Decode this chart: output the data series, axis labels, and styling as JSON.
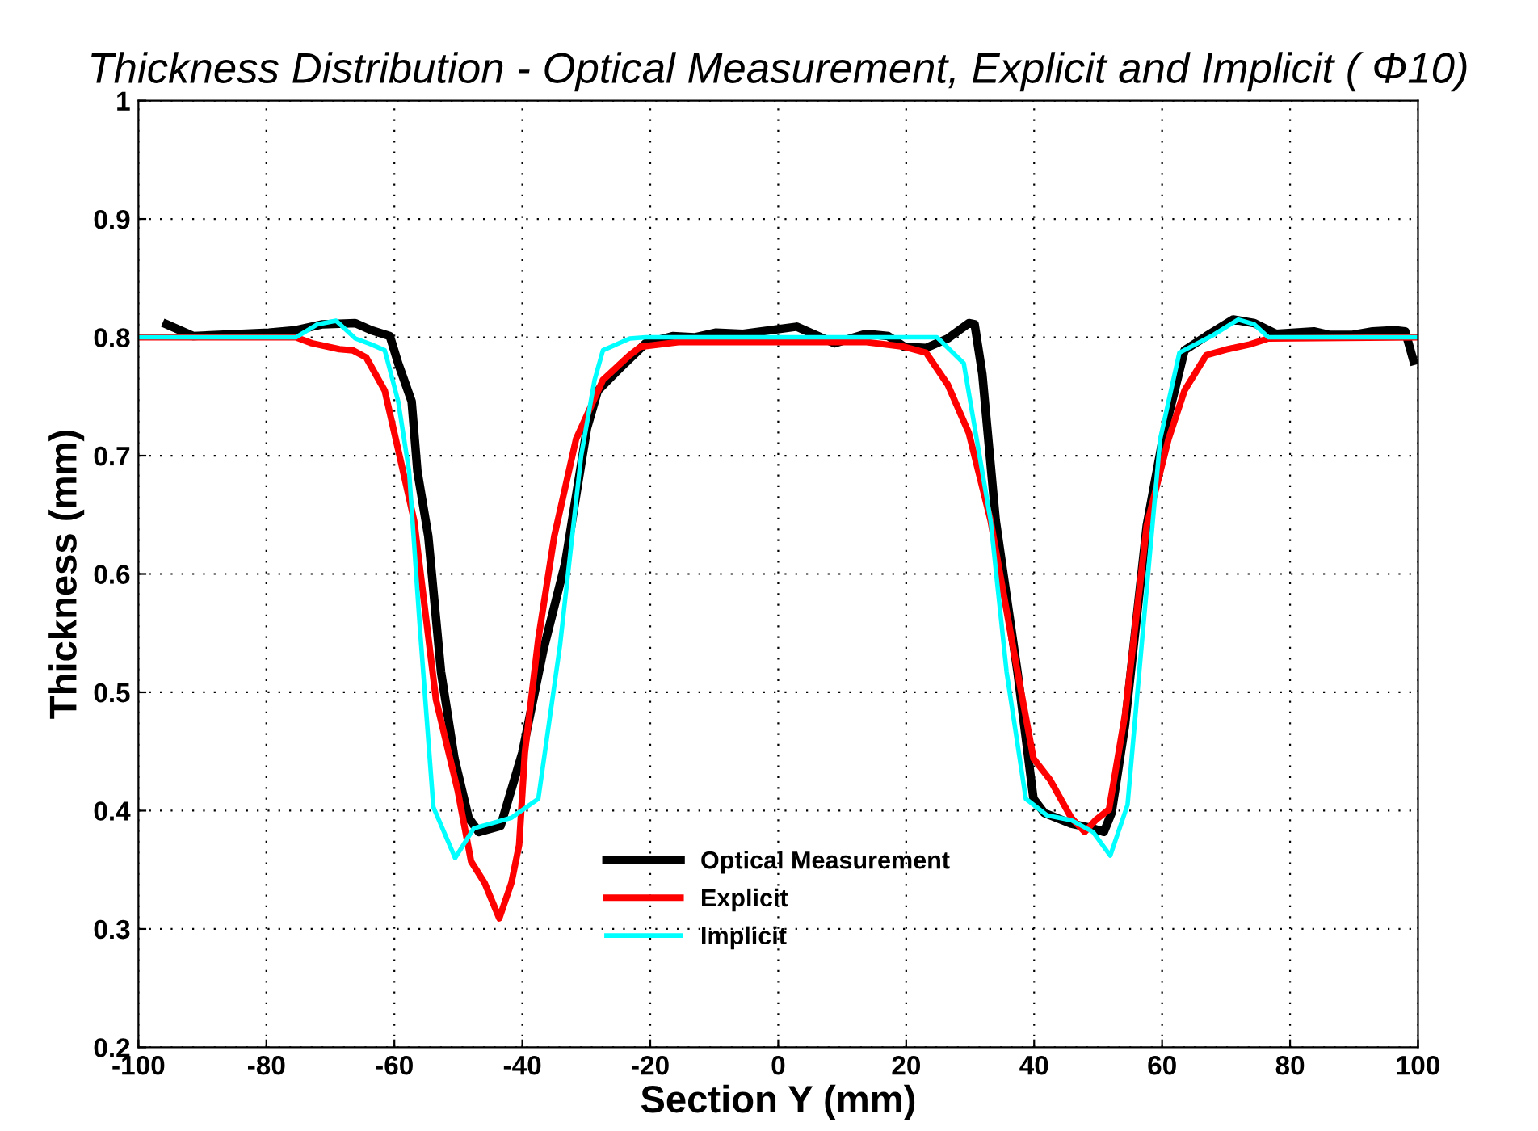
{
  "chart_data": {
    "type": "line",
    "title": "Thickness Distribution - Optical Measurement, Explicit and Implicit ( Φ10)",
    "xlabel": "Section Y (mm)",
    "ylabel": "Thickness (mm)",
    "xlim": [
      -100,
      100
    ],
    "xticks": [
      -100,
      -80,
      -60,
      -40,
      -20,
      0,
      20,
      40,
      60,
      80,
      100
    ],
    "ylim": [
      0.2,
      1
    ],
    "yticks": [
      0.2,
      0.3,
      0.4,
      0.5,
      0.6,
      0.7,
      0.8,
      0.9,
      1
    ],
    "grid": true,
    "legend": "bottom",
    "marker": "none",
    "line_style": "solid",
    "series": [
      {
        "name": "Optical Measurement",
        "color": "#000000",
        "x": [
          -95.6,
          -91.4,
          -79.6,
          -75.4,
          -71.2,
          -66.1,
          -63.6,
          -60.7,
          -59.4,
          -57.3,
          -56.4,
          -54.7,
          -52.7,
          -50.6,
          -48.4,
          -46.8,
          -43.4,
          -40,
          -36.7,
          -33.3,
          -29.9,
          -28.2,
          -24.9,
          -20.7,
          -16.5,
          -13.1,
          -9.7,
          -5.5,
          2.9,
          5.4,
          8.8,
          13.8,
          17.2,
          19.7,
          23.1,
          26.5,
          29.8,
          30.7,
          31.9,
          34.0,
          37.4,
          39.9,
          41.6,
          45.8,
          49.2,
          50.9,
          52.1,
          54.2,
          57.6,
          60.1,
          63.5,
          66.9,
          71.1,
          74.4,
          77.8,
          83.7,
          86.2,
          89.6,
          92.9,
          96.3,
          98,
          99.3
        ],
        "values": [
          0.811,
          0.801,
          0.804,
          0.806,
          0.811,
          0.812,
          0.806,
          0.801,
          0.778,
          0.746,
          0.687,
          0.632,
          0.517,
          0.444,
          0.394,
          0.382,
          0.387,
          0.449,
          0.536,
          0.609,
          0.723,
          0.755,
          0.773,
          0.795,
          0.801,
          0.8,
          0.804,
          0.803,
          0.809,
          0.803,
          0.795,
          0.803,
          0.801,
          0.792,
          0.791,
          0.799,
          0.812,
          0.811,
          0.769,
          0.645,
          0.517,
          0.41,
          0.398,
          0.389,
          0.385,
          0.382,
          0.398,
          0.472,
          0.641,
          0.714,
          0.789,
          0.801,
          0.815,
          0.812,
          0.803,
          0.805,
          0.802,
          0.802,
          0.805,
          0.806,
          0.805,
          0.78
        ]
      },
      {
        "name": "Explicit",
        "color": "#ff0000",
        "x": [
          -100,
          -75.4,
          -72.9,
          -68.6,
          -66.5,
          -64.4,
          -61.5,
          -59.4,
          -56.9,
          -53.5,
          -50.1,
          -48,
          -45.9,
          -43.6,
          -41.7,
          -40.5,
          -39.6,
          -37.5,
          -35,
          -31.6,
          -27.4,
          -23.2,
          -21.5,
          -15.6,
          13.8,
          19.7,
          23.1,
          26.5,
          29.8,
          33.2,
          37.4,
          39.9,
          42.5,
          45.8,
          47.9,
          49.6,
          51.7,
          54.2,
          57.6,
          61,
          63.5,
          66.9,
          70.3,
          73.7,
          76.6,
          100
        ],
        "values": [
          0.8,
          0.8,
          0.795,
          0.79,
          0.789,
          0.783,
          0.755,
          0.705,
          0.645,
          0.494,
          0.417,
          0.357,
          0.339,
          0.309,
          0.339,
          0.371,
          0.449,
          0.545,
          0.632,
          0.714,
          0.764,
          0.785,
          0.792,
          0.796,
          0.796,
          0.792,
          0.787,
          0.76,
          0.719,
          0.645,
          0.517,
          0.444,
          0.426,
          0.394,
          0.382,
          0.392,
          0.401,
          0.481,
          0.641,
          0.714,
          0.755,
          0.785,
          0.79,
          0.794,
          0.799,
          0.8
        ]
      },
      {
        "name": "Implicit",
        "color": "#00ffff",
        "x": [
          -100,
          -75.4,
          -72,
          -69.1,
          -66.1,
          -63.6,
          -61.5,
          -59.4,
          -57.7,
          -56,
          -53.9,
          -50.5,
          -47.6,
          -41.7,
          -37.5,
          -34.1,
          -30.8,
          -28.7,
          -27.4,
          -23.2,
          -20.7,
          24.8,
          25.6,
          29,
          33.2,
          35.7,
          38.7,
          42,
          45.8,
          49.2,
          51.9,
          54.6,
          56.8,
          59.7,
          62.7,
          67.7,
          71.9,
          74.4,
          76.6,
          100
        ],
        "values": [
          0.8,
          0.8,
          0.811,
          0.814,
          0.799,
          0.794,
          0.789,
          0.746,
          0.687,
          0.554,
          0.403,
          0.36,
          0.385,
          0.394,
          0.41,
          0.54,
          0.7,
          0.764,
          0.789,
          0.799,
          0.8,
          0.8,
          0.796,
          0.778,
          0.645,
          0.517,
          0.41,
          0.396,
          0.392,
          0.382,
          0.362,
          0.405,
          0.54,
          0.714,
          0.787,
          0.801,
          0.815,
          0.811,
          0.8,
          0.8
        ]
      }
    ]
  }
}
